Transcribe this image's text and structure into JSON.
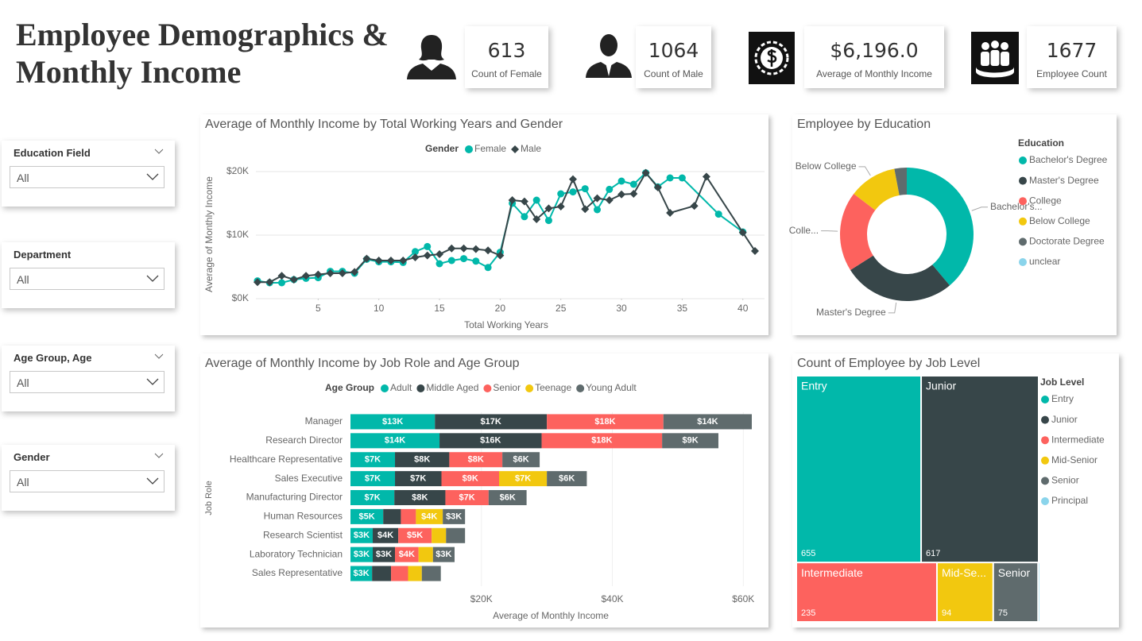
{
  "header": {
    "title": "Employee Demographics & Monthly Income"
  },
  "kpis": [
    {
      "value": 613,
      "label": "Count of Female"
    },
    {
      "value": 1064,
      "label": "Count of Male"
    },
    {
      "value": "$6,196.0",
      "label": "Average of Monthly Income"
    },
    {
      "value": 1677,
      "label": "Employee Count"
    }
  ],
  "slicers": [
    {
      "title": "Education Field",
      "value": "All"
    },
    {
      "title": "Department",
      "value": "All"
    },
    {
      "title": "Age Group, Age",
      "value": "All"
    },
    {
      "title": "Gender",
      "value": "All"
    }
  ],
  "chart_data": [
    {
      "type": "line",
      "title": "Average of Monthly Income by Total Working Years and Gender",
      "x_label": "Total Working Years",
      "y_label": "Average of Monthly Income",
      "legend_title": "Gender",
      "xlim": [
        0,
        41
      ],
      "xticks": [
        5,
        10,
        15,
        20,
        25,
        30,
        35,
        40
      ],
      "ylim": [
        0,
        21000
      ],
      "yticks": [
        {
          "value": 0,
          "label": "$0K"
        },
        {
          "value": 10000,
          "label": "$10K"
        },
        {
          "value": 20000,
          "label": "$20K"
        }
      ],
      "grid": true,
      "series": [
        {
          "name": "Female",
          "color": "#01b8aa",
          "marker": "circle",
          "x": [
            0,
            1,
            2,
            3,
            4,
            5,
            6,
            7,
            8,
            9,
            10,
            11,
            12,
            13,
            14,
            15,
            16,
            17,
            18,
            19,
            20,
            21,
            22,
            23,
            24,
            25,
            26,
            27,
            28,
            29,
            30,
            31,
            32,
            33,
            34,
            35,
            38,
            40
          ],
          "values": [
            2800,
            2500,
            2500,
            3000,
            3200,
            3300,
            4300,
            4300,
            4000,
            6200,
            5800,
            5800,
            5700,
            7400,
            8200,
            5500,
            6000,
            6300,
            5900,
            4900,
            7300,
            15000,
            12900,
            15500,
            12300,
            16500,
            16800,
            17300,
            14000,
            17200,
            18500,
            18000,
            19800,
            17600,
            19000,
            19000,
            13300,
            10500
          ]
        },
        {
          "name": "Male",
          "color": "#374649",
          "marker": "diamond",
          "x": [
            0,
            1,
            2,
            3,
            4,
            5,
            6,
            7,
            8,
            9,
            10,
            11,
            12,
            13,
            14,
            15,
            16,
            17,
            18,
            19,
            20,
            21,
            22,
            23,
            24,
            25,
            26,
            27,
            28,
            29,
            30,
            31,
            32,
            33,
            34,
            36,
            37,
            40,
            41
          ],
          "values": [
            2600,
            2600,
            3600,
            3000,
            3600,
            3800,
            4000,
            4000,
            4200,
            6300,
            6000,
            6000,
            6000,
            6500,
            6800,
            7000,
            7900,
            7900,
            7800,
            7600,
            6800,
            15500,
            15300,
            12500,
            14200,
            14500,
            18800,
            14100,
            15800,
            15500,
            16400,
            16500,
            19800,
            17500,
            13500,
            14600,
            19200,
            10400,
            7500
          ]
        }
      ]
    },
    {
      "type": "bar",
      "orientation": "horizontal",
      "stacked": true,
      "title": "Average of Monthly Income by Job Role and Age Group",
      "x_label": "Average of Monthly Income",
      "y_label": "Job Role",
      "legend_title": "Age Group",
      "categories": [
        "Manager",
        "Research Director",
        "Healthcare Representative",
        "Sales Executive",
        "Manufacturing Director",
        "Human Resources",
        "Research Scientist",
        "Laboratory Technician",
        "Sales Representative"
      ],
      "xlim": [
        0,
        63000
      ],
      "xticks": [
        {
          "value": 20000,
          "label": "$20K"
        },
        {
          "value": 40000,
          "label": "$40K"
        },
        {
          "value": 60000,
          "label": "$60K"
        }
      ],
      "grid": true,
      "series": [
        {
          "name": "Adult",
          "color": "#01b8aa",
          "values": [
            12900,
            13600,
            6800,
            6800,
            6700,
            5000,
            3400,
            3400,
            3300
          ],
          "value_labels": [
            "$13K",
            "$14K",
            "$7K",
            "$7K",
            "$7K",
            "$5K",
            "$3K",
            "$3K",
            "$3K"
          ]
        },
        {
          "name": "Middle Aged",
          "color": "#374649",
          "values": [
            17100,
            15600,
            8300,
            7100,
            7800,
            2700,
            3900,
            3400,
            2900
          ],
          "value_labels": [
            "$17K",
            "$16K",
            "$8K",
            "$7K",
            "$8K",
            null,
            "$4K",
            "$3K",
            null
          ]
        },
        {
          "name": "Senior",
          "color": "#fd625e",
          "values": [
            17800,
            18400,
            8100,
            8800,
            6600,
            2300,
            5100,
            3600,
            2600
          ],
          "value_labels": [
            "$18K",
            "$18K",
            "$8K",
            "$9K",
            "$7K",
            null,
            "$5K",
            "$4K",
            null
          ]
        },
        {
          "name": "Teenage",
          "color": "#f2c80f",
          "values": [
            null,
            null,
            null,
            7300,
            null,
            4100,
            2200,
            2200,
            2100
          ],
          "value_labels": [
            null,
            null,
            null,
            "$7K",
            null,
            "$4K",
            null,
            null,
            null
          ]
        },
        {
          "name": "Young Adult",
          "color": "#5f6b6d",
          "values": [
            13500,
            8600,
            5700,
            6100,
            5800,
            3400,
            2900,
            3300,
            2900
          ],
          "value_labels": [
            "$14K",
            "$9K",
            "$6K",
            "$6K",
            "$6K",
            "$3K",
            null,
            "$3K",
            null
          ]
        }
      ]
    },
    {
      "type": "donut",
      "title": "Employee by Education",
      "legend_title": "Education",
      "categories": [
        "Bachelor's Degree",
        "Master's Degree",
        "College",
        "Below College",
        "Doctorate Degree",
        "unclear"
      ],
      "values": [
        652,
        455,
        325,
        195,
        50,
        0
      ],
      "colors": [
        "#01b8aa",
        "#374649",
        "#fd625e",
        "#f2c80f",
        "#5f6b6d",
        "#8ad4eb"
      ],
      "slice_labels": [
        "Bachelor's...",
        "Master's Degree",
        "Colle...",
        "Below College",
        null,
        null
      ]
    },
    {
      "type": "treemap",
      "title": "Count of Employee by Job Level",
      "legend_title": "Job Level",
      "categories": [
        "Entry",
        "Junior",
        "Intermediate",
        "Mid-Senior",
        "Senior",
        "Principal"
      ],
      "values": [
        655,
        617,
        235,
        94,
        75,
        1
      ],
      "colors": [
        "#01b8aa",
        "#374649",
        "#fd625e",
        "#f2c80f",
        "#5f6b6d",
        "#8ad4eb"
      ],
      "tile_labels": [
        "Entry",
        "Junior",
        "Intermediate",
        "Mid-Se...",
        "Senior",
        null
      ]
    }
  ]
}
